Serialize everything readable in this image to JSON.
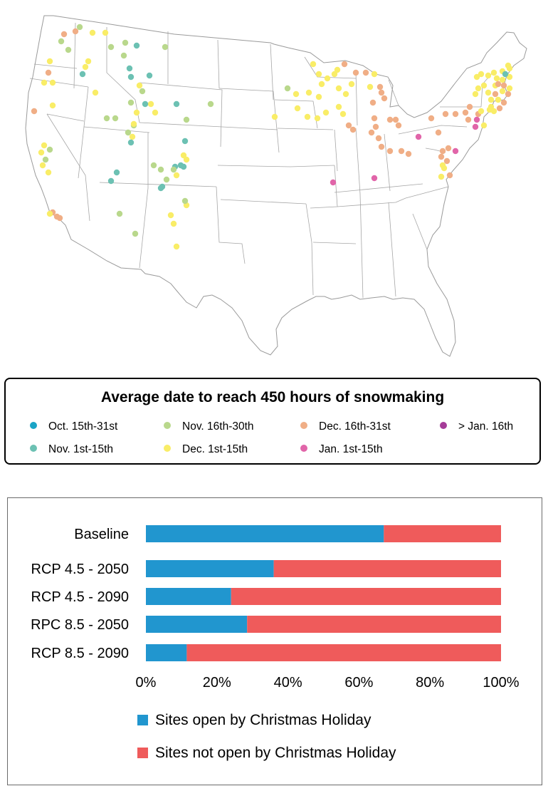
{
  "legend": {
    "title": "Average date to reach 450 hours of snowmaking",
    "items": [
      {
        "label": "Oct. 15th-31st",
        "color": "#1aa4c6"
      },
      {
        "label": "Nov. 16th-30th",
        "color": "#b9d88c"
      },
      {
        "label": "Dec. 16th-31st",
        "color": "#f0ae86"
      },
      {
        "label": "> Jan. 16th",
        "color": "#a53c98"
      },
      {
        "label": "Nov. 1st-15th",
        "color": "#6cc1b3"
      },
      {
        "label": "Dec. 1st-15th",
        "color": "#f9ed67"
      },
      {
        "label": "Jan. 1st-15th",
        "color": "#e165a9"
      }
    ]
  },
  "chart_data": {
    "type": "bar",
    "stacked": true,
    "orientation": "horizontal",
    "categories": [
      "Baseline",
      "RCP 4.5 - 2050",
      "RCP 4.5 - 2090",
      "RPC 8.5 - 2050",
      "RCP 8.5 - 2090"
    ],
    "series": [
      {
        "name": "Sites open by Christmas Holiday",
        "color": "#2196cf",
        "values": [
          67,
          36,
          24,
          28.5,
          11.5
        ]
      },
      {
        "name": "Sites not open by Christmas Holiday",
        "color": "#ef5b5b",
        "values": [
          33,
          64,
          76,
          71.5,
          88.5
        ]
      }
    ],
    "xticks": [
      "0%",
      "20%",
      "40%",
      "60%",
      "80%",
      "100%"
    ],
    "xlim": [
      0,
      100
    ],
    "grid": false,
    "legend_position": "bottom"
  }
}
